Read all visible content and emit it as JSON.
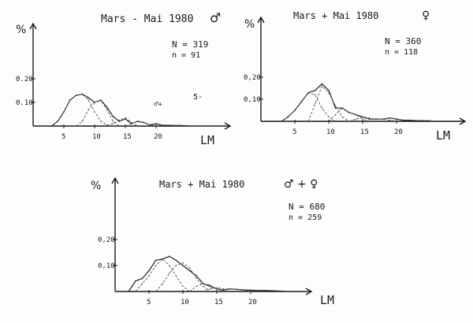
{
  "page": {
    "colors": {
      "ink": "#1a1a1a",
      "paper": "#fdfdfd"
    }
  },
  "chart_data": [
    {
      "type": "line",
      "id": "males",
      "title": "Mars - Mai 1980",
      "title_symbol": "♂",
      "ylabel": "%",
      "xlabel": "LM",
      "ylim": [
        0,
        0.3
      ],
      "xlim": [
        0,
        25
      ],
      "x_ticks": [
        "5",
        "10",
        "15",
        "20"
      ],
      "y_ticks": [
        "0.10",
        "0.20"
      ],
      "stats": [
        "N = 319",
        "n = 91"
      ],
      "series": [
        {
          "x": [
            3,
            4,
            5,
            6,
            7,
            8,
            9,
            10,
            11,
            12,
            13,
            14,
            15,
            16,
            17,
            18,
            19,
            20,
            21,
            22,
            23,
            24,
            25
          ],
          "values": [
            0,
            0.02,
            0.06,
            0.11,
            0.13,
            0.135,
            0.12,
            0.1,
            0.11,
            0.08,
            0.04,
            0.02,
            0.03,
            0.01,
            0.02,
            0.015,
            0.005,
            0.01,
            0.003,
            0.003,
            0.002,
            0.002,
            0.001
          ]
        },
        {
          "x": [
            3,
            4,
            5,
            6,
            7,
            8,
            9,
            10,
            11,
            12,
            13
          ],
          "values": [
            0,
            0.02,
            0.06,
            0.11,
            0.13,
            0.135,
            0.11,
            0.06,
            0.02,
            0.005,
            0
          ]
        },
        {
          "x": [
            7,
            8,
            9,
            10,
            11,
            12,
            13,
            14
          ],
          "values": [
            0,
            0.02,
            0.07,
            0.1,
            0.11,
            0.07,
            0.02,
            0
          ]
        },
        {
          "x": [
            12,
            13,
            14,
            15,
            16,
            17
          ],
          "values": [
            0,
            0.01,
            0.025,
            0.035,
            0.015,
            0
          ]
        },
        {
          "x": [
            15,
            16,
            17,
            18,
            19,
            20
          ],
          "values": [
            0,
            0.01,
            0.02,
            0.015,
            0.005,
            0
          ]
        }
      ]
    },
    {
      "type": "line",
      "id": "females",
      "title": "Mars + Mai 1980",
      "title_symbol": "♀",
      "ylabel": "%",
      "xlabel": "LM",
      "ylim": [
        0,
        0.3
      ],
      "xlim": [
        0,
        25
      ],
      "x_ticks": [
        "5",
        "10",
        "15",
        "20"
      ],
      "y_ticks": [
        "0,10",
        "0,20"
      ],
      "stats": [
        "N = 360",
        "n = 118"
      ],
      "series": [
        {
          "x": [
            3,
            4,
            5,
            6,
            7,
            8,
            9,
            10,
            11,
            12,
            13,
            14,
            15,
            16,
            17,
            18,
            19,
            20,
            21,
            22,
            23,
            24,
            25
          ],
          "values": [
            0,
            0.02,
            0.05,
            0.09,
            0.13,
            0.14,
            0.17,
            0.14,
            0.06,
            0.06,
            0.04,
            0.03,
            0.02,
            0.01,
            0.01,
            0.01,
            0.015,
            0.01,
            0.005,
            0.005,
            0.003,
            0.003,
            0.002
          ]
        },
        {
          "x": [
            3,
            4,
            5,
            6,
            7,
            8,
            9,
            10,
            11
          ],
          "values": [
            0,
            0.02,
            0.05,
            0.09,
            0.13,
            0.12,
            0.06,
            0.02,
            0
          ]
        },
        {
          "x": [
            7,
            8,
            9,
            10,
            11,
            12,
            13
          ],
          "values": [
            0,
            0.08,
            0.16,
            0.13,
            0.07,
            0.02,
            0
          ]
        },
        {
          "x": [
            10,
            11,
            12,
            13,
            14,
            15,
            16
          ],
          "values": [
            0,
            0.03,
            0.06,
            0.04,
            0.03,
            0.01,
            0
          ]
        },
        {
          "x": [
            13,
            14,
            15,
            16,
            17,
            18,
            19,
            20
          ],
          "values": [
            0,
            0.01,
            0.02,
            0.015,
            0.01,
            0.01,
            0.005,
            0
          ]
        }
      ]
    },
    {
      "type": "line",
      "id": "combined",
      "title": "Mars + Mai 1980",
      "title_symbol": "♂ + ♀",
      "ylabel": "%",
      "xlabel": "LM",
      "ylim": [
        0,
        0.3
      ],
      "xlim": [
        0,
        25
      ],
      "x_ticks": [
        "5",
        "10",
        "15",
        "20"
      ],
      "y_ticks": [
        "0,10",
        "0,20"
      ],
      "stats": [
        "N = 680",
        "n = 259"
      ],
      "series": [
        {
          "x": [
            2,
            3,
            4,
            5,
            6,
            7,
            8,
            9,
            10,
            11,
            12,
            13,
            14,
            15,
            16,
            17,
            18,
            19,
            20,
            21,
            22,
            23,
            24,
            25
          ],
          "values": [
            0,
            0.04,
            0.05,
            0.08,
            0.12,
            0.125,
            0.135,
            0.12,
            0.1,
            0.08,
            0.06,
            0.03,
            0.02,
            0.01,
            0.005,
            0.01,
            0.008,
            0.006,
            0.005,
            0.004,
            0.004,
            0.003,
            0.002,
            0.001
          ]
        },
        {
          "x": [
            3,
            4,
            5,
            6,
            7,
            8,
            9,
            10,
            11
          ],
          "values": [
            0,
            0.03,
            0.06,
            0.1,
            0.125,
            0.1,
            0.06,
            0.02,
            0
          ]
        },
        {
          "x": [
            6,
            7,
            8,
            9,
            10,
            11,
            12,
            13,
            14
          ],
          "values": [
            0,
            0.03,
            0.07,
            0.1,
            0.11,
            0.09,
            0.05,
            0.02,
            0
          ]
        },
        {
          "x": [
            11,
            12,
            13,
            14,
            15,
            16
          ],
          "values": [
            0,
            0.02,
            0.03,
            0.025,
            0.01,
            0
          ]
        },
        {
          "x": [
            13,
            14,
            15,
            16,
            17,
            18,
            19,
            20
          ],
          "values": [
            0,
            0.01,
            0.015,
            0.01,
            0.01,
            0.008,
            0.005,
            0
          ]
        }
      ]
    }
  ],
  "panels_meta": {
    "males_scribble": "♂+",
    "males_scribble2": "5-"
  }
}
